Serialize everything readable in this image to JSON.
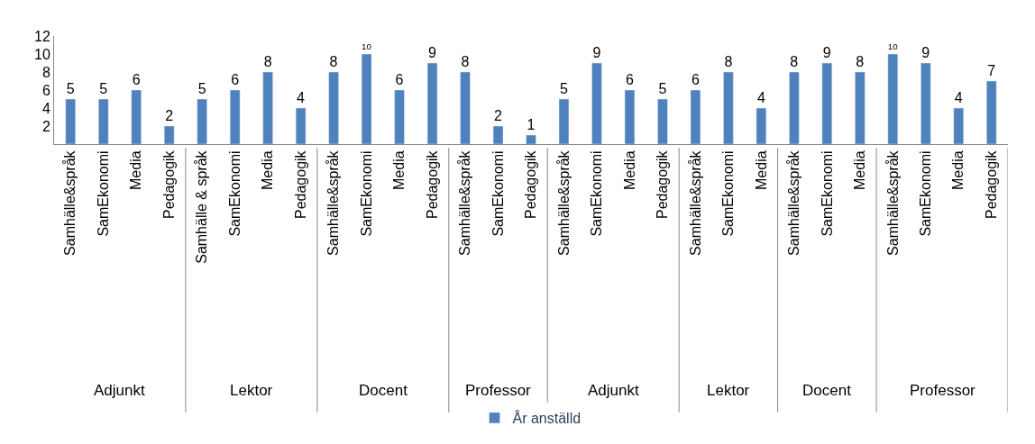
{
  "chart_data": {
    "type": "bar",
    "categories": [
      "Samhälle&språk",
      "SamEkonomi",
      "Media",
      "Pedagogik",
      "Samhälle & språk",
      "SamEkonomi",
      "Media",
      "Pedagogik",
      "Samhälle&språk",
      "SamEkonomi",
      "Media",
      "Pedagogik",
      "Samhälle&språk",
      "SamEkonomi",
      "Pedagogik",
      "Samhälle&språk",
      "SamEkonomi",
      "Media",
      "Pedagogik",
      "Samhälle&språk",
      "SamEkonomi",
      "Media",
      "Samhälle&språk",
      "SamEkonomi",
      "Media",
      "Samhälle&språk",
      "SamEkonomi",
      "Media",
      "Pedagogik"
    ],
    "series": [
      {
        "name": "År anställd",
        "color": "#4f81bd",
        "values": [
          5,
          5,
          6,
          2,
          5,
          6,
          8,
          4,
          8,
          10,
          6,
          9,
          8,
          2,
          1,
          5,
          9,
          6,
          5,
          6,
          8,
          4,
          8,
          9,
          8,
          10,
          9,
          4,
          7
        ]
      }
    ],
    "ylim": [
      0,
      12
    ],
    "yticks": [
      2,
      4,
      6,
      8,
      10,
      12
    ],
    "annotations": [
      "Adjunkt",
      "Lektor",
      "Docent",
      "Professor",
      "Adjunkt",
      "Lektor",
      "Docent",
      "Professor"
    ],
    "data_labels": true,
    "legend": "bottom"
  }
}
